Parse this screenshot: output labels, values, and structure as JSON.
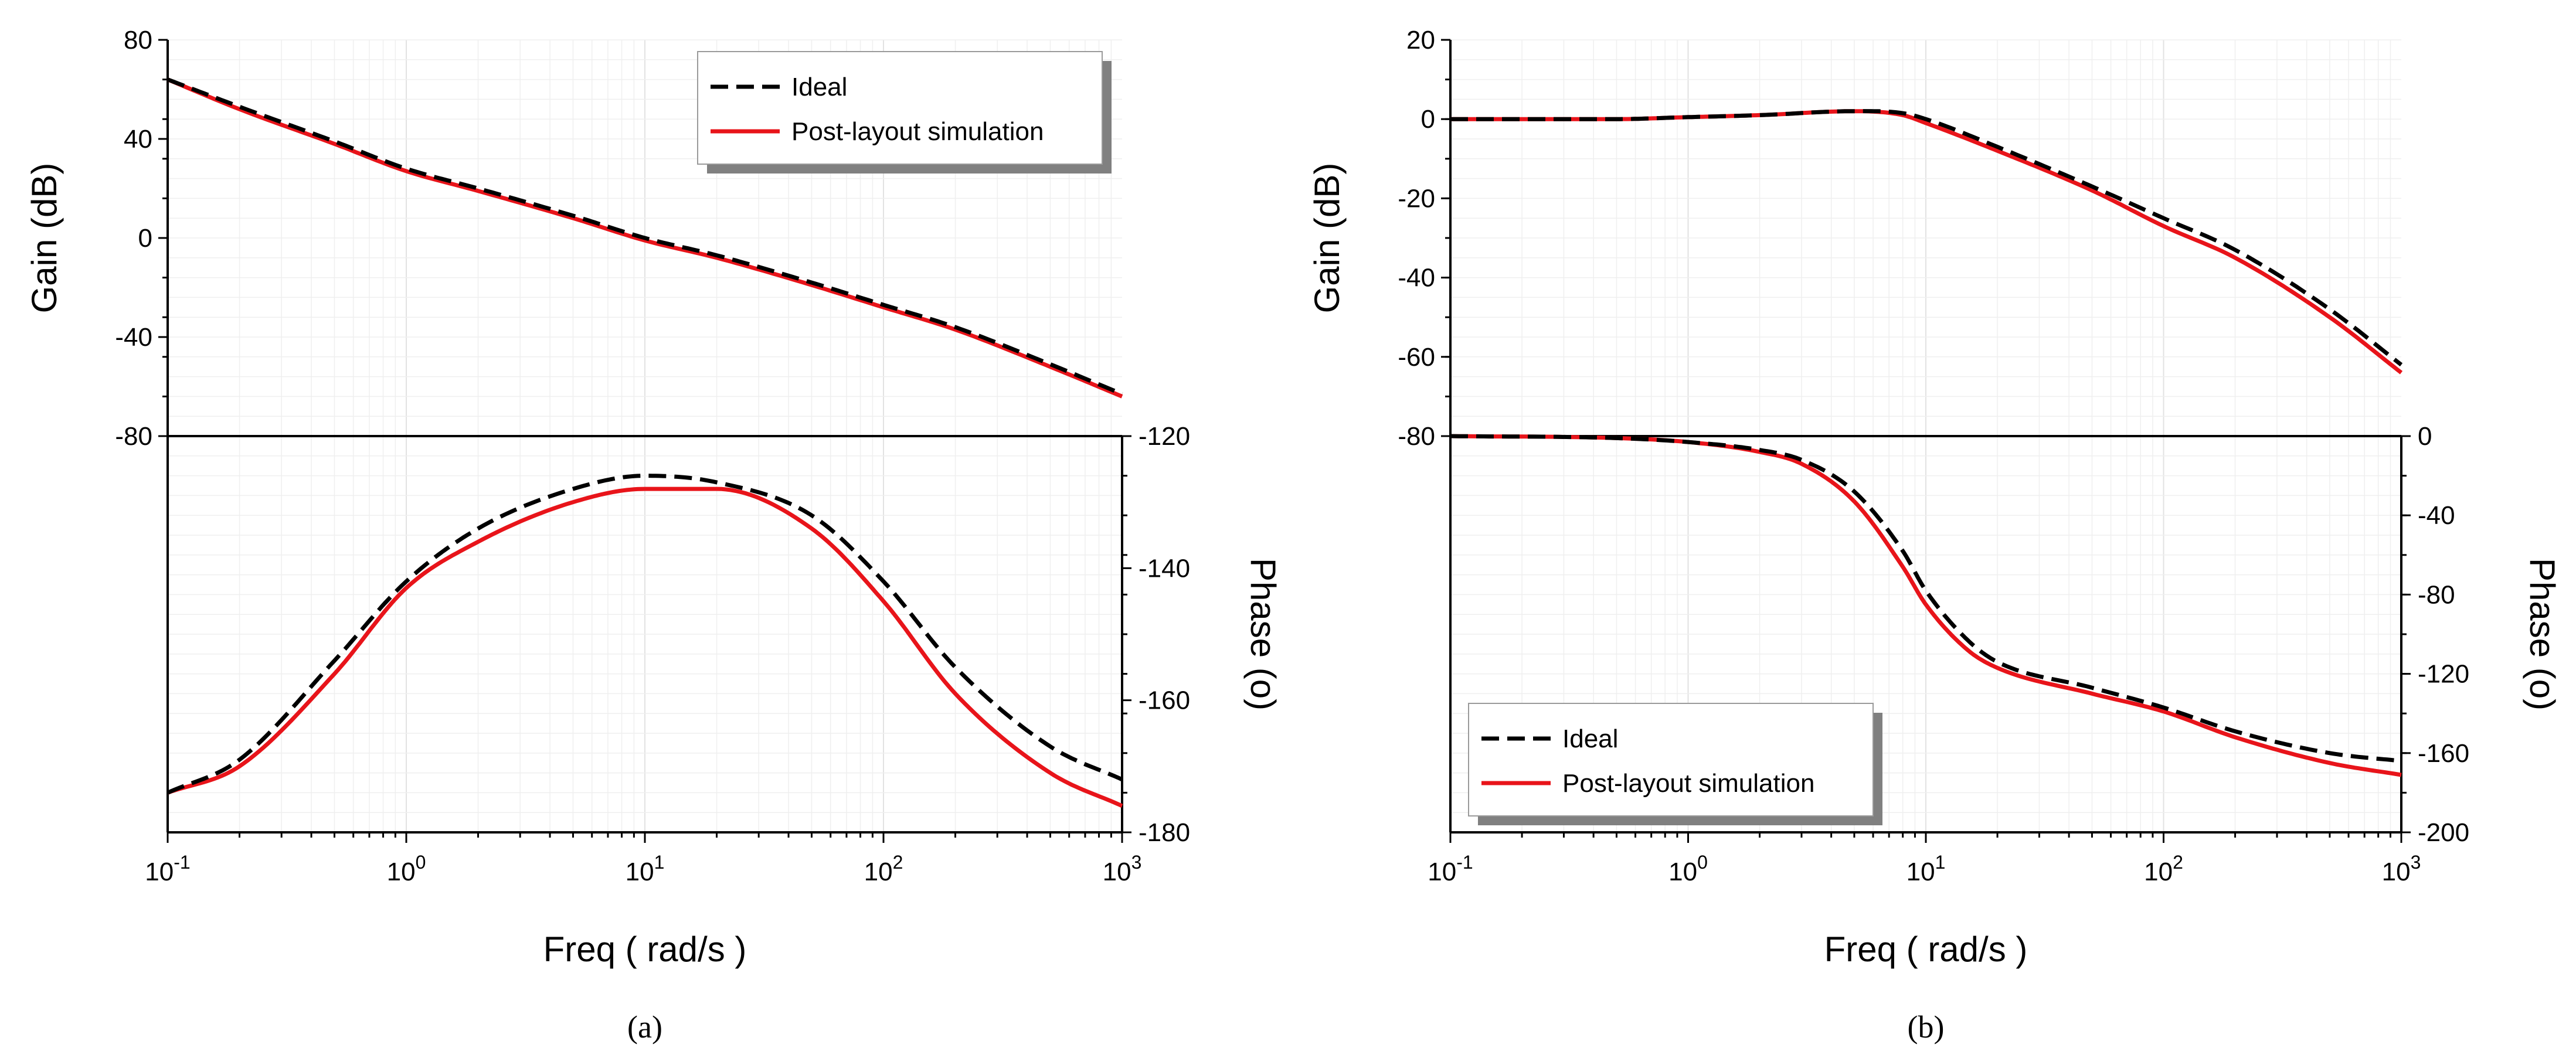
{
  "chart_data": [
    {
      "type": "line",
      "panel": "a",
      "caption": "(a)",
      "xlabel": "Freq ( rad/s )",
      "x_scale": "log",
      "xlim": [
        0.1,
        1000
      ],
      "x_ticks": [
        {
          "base": "10",
          "exp": "-1"
        },
        {
          "base": "10",
          "exp": "0"
        },
        {
          "base": "10",
          "exp": "1"
        },
        {
          "base": "10",
          "exp": "2"
        },
        {
          "base": "10",
          "exp": "3"
        }
      ],
      "gain": {
        "ylabel": "Gain (dB)",
        "ylim": [
          -80,
          80
        ],
        "y_ticks": [
          "-80",
          "-40",
          "0",
          "40",
          "80"
        ],
        "y_tick_values": [
          -80,
          -40,
          0,
          40,
          80
        ],
        "series": [
          {
            "name": "Ideal",
            "x": [
              0.1,
              0.2,
              0.5,
              1,
              2,
              5,
              10,
              20,
              50,
              100,
              200,
              500,
              1000
            ],
            "values": [
              64,
              53,
              39,
              28,
              20,
              9,
              0,
              -7,
              -18,
              -27,
              -36,
              -51,
              -63
            ]
          },
          {
            "name": "Post-layout simulation",
            "x": [
              0.1,
              0.2,
              0.5,
              1,
              2,
              5,
              10,
              20,
              50,
              100,
              200,
              500,
              1000
            ],
            "values": [
              64,
              52,
              38,
              27,
              19,
              8,
              -1,
              -8,
              -19,
              -28,
              -37,
              -52,
              -64
            ]
          }
        ]
      },
      "phase": {
        "ylabel": "Phase (o)",
        "ylim": [
          -180,
          -120
        ],
        "y_ticks": [
          "-120",
          "-140",
          "-160",
          "-180"
        ],
        "y_tick_values": [
          -120,
          -140,
          -160,
          -180
        ],
        "series": [
          {
            "name": "Ideal",
            "x": [
              0.1,
              0.2,
              0.5,
              1,
              2,
              5,
              10,
              20,
              50,
              100,
              200,
              500,
              1000
            ],
            "values": [
              -174,
              -169,
              -154,
              -142,
              -134,
              -128,
              -126,
              -127,
              -132,
              -142,
              -155,
              -167,
              -172
            ]
          },
          {
            "name": "Post-layout simulation",
            "x": [
              0.1,
              0.2,
              0.5,
              1,
              2,
              5,
              10,
              20,
              50,
              100,
              200,
              500,
              1000
            ],
            "values": [
              -174,
              -170,
              -156,
              -143,
              -136,
              -130,
              -128,
              -128,
              -134,
              -145,
              -159,
              -171,
              -176
            ]
          }
        ]
      },
      "legend": {
        "placement": "top-right",
        "entries": [
          "Ideal",
          "Post-layout simulation"
        ]
      }
    },
    {
      "type": "line",
      "panel": "b",
      "caption": "(b)",
      "xlabel": "Freq ( rad/s )",
      "x_scale": "log",
      "xlim": [
        0.1,
        1000
      ],
      "x_ticks": [
        {
          "base": "10",
          "exp": "-1"
        },
        {
          "base": "10",
          "exp": "0"
        },
        {
          "base": "10",
          "exp": "1"
        },
        {
          "base": "10",
          "exp": "2"
        },
        {
          "base": "10",
          "exp": "3"
        }
      ],
      "gain": {
        "ylabel": "Gain (dB)",
        "ylim": [
          -80,
          20
        ],
        "y_ticks": [
          "-80",
          "-60",
          "-40",
          "-20",
          "0",
          "20"
        ],
        "y_tick_values": [
          -80,
          -60,
          -40,
          -20,
          0,
          20
        ],
        "series": [
          {
            "name": "Ideal",
            "x": [
              0.1,
              0.5,
              1,
              2,
              5,
              8,
              10,
              20,
              50,
              100,
              200,
              500,
              1000
            ],
            "values": [
              0,
              0,
              0.5,
              1,
              2,
              1.5,
              0,
              -7,
              -17,
              -25,
              -33,
              -48,
              -62
            ]
          },
          {
            "name": "Post-layout simulation",
            "x": [
              0.1,
              0.5,
              1,
              2,
              5,
              8,
              10,
              20,
              50,
              100,
              200,
              500,
              1000
            ],
            "values": [
              0,
              0,
              0.5,
              1,
              2,
              1,
              -1,
              -8,
              -18,
              -27,
              -35,
              -50,
              -64
            ]
          }
        ]
      },
      "phase": {
        "ylabel": "Phase (o)",
        "ylim": [
          -200,
          0
        ],
        "y_ticks": [
          "0",
          "-40",
          "-80",
          "-120",
          "-160",
          "-200"
        ],
        "y_tick_values": [
          0,
          -40,
          -80,
          -120,
          -160,
          -200
        ],
        "series": [
          {
            "name": "Ideal",
            "x": [
              0.1,
              0.5,
              1,
              2,
              3,
              5,
              8,
              10,
              15,
              20,
              50,
              100,
              200,
              500,
              1000
            ],
            "values": [
              0,
              -1,
              -3,
              -7,
              -12,
              -28,
              -58,
              -78,
              -103,
              -114,
              -127,
              -137,
              -149,
              -160,
              -164
            ]
          },
          {
            "name": "Post-layout simulation",
            "x": [
              0.1,
              0.5,
              1,
              2,
              3,
              5,
              8,
              10,
              15,
              20,
              50,
              100,
              200,
              500,
              1000
            ],
            "values": [
              0,
              -1,
              -3,
              -8,
              -14,
              -33,
              -66,
              -85,
              -108,
              -117,
              -130,
              -139,
              -152,
              -165,
              -171
            ]
          }
        ]
      },
      "legend": {
        "placement": "bottom-left",
        "entries": [
          "Ideal",
          "Post-layout simulation"
        ]
      }
    }
  ]
}
